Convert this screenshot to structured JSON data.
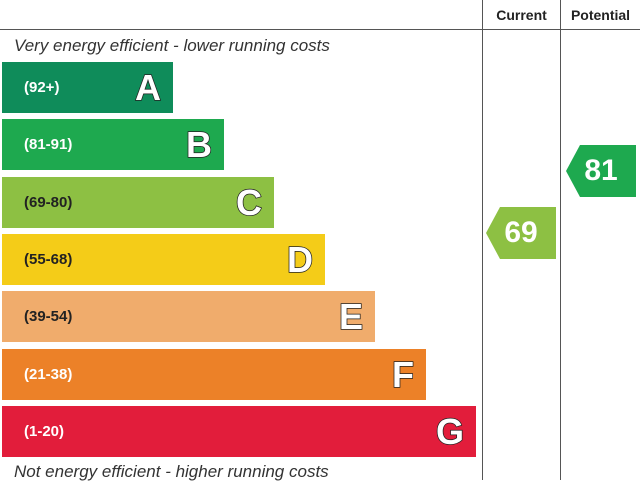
{
  "header": {
    "current_label": "Current",
    "potential_label": "Potential"
  },
  "captions": {
    "top": "Very energy efficient - lower running costs",
    "bottom": "Not energy efficient - higher running costs"
  },
  "chart_data": {
    "type": "bar",
    "bands": [
      {
        "letter": "A",
        "range": "(92+)",
        "color": "#0f8c5a"
      },
      {
        "letter": "B",
        "range": "(81-91)",
        "color": "#1ea94f"
      },
      {
        "letter": "C",
        "range": "(69-80)",
        "color": "#8dc043"
      },
      {
        "letter": "D",
        "range": "(55-68)",
        "color": "#f4cc18"
      },
      {
        "letter": "E",
        "range": "(39-54)",
        "color": "#f0ac6c"
      },
      {
        "letter": "F",
        "range": "(21-38)",
        "color": "#ec8128"
      },
      {
        "letter": "G",
        "range": "(1-20)",
        "color": "#e21d3b"
      }
    ],
    "current": {
      "value": "69",
      "band": "C",
      "color": "#8dc043"
    },
    "potential": {
      "value": "81",
      "band": "B",
      "color": "#1ea94f"
    }
  }
}
